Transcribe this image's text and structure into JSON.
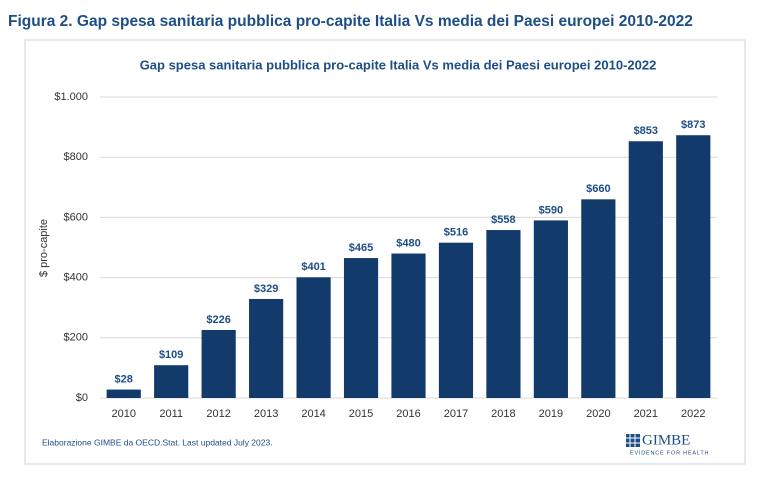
{
  "figure_title": "Figura 2. Gap spesa sanitaria pubblica pro-capite Italia Vs media dei Paesi europei 2010-2022",
  "chart_data": {
    "type": "bar",
    "title": "Gap spesa sanitaria pubblica pro-capite Italia Vs media dei Paesi europei 2010-2022",
    "y_label": "$ pro-capite",
    "categories": [
      "2010",
      "2011",
      "2012",
      "2013",
      "2014",
      "2015",
      "2016",
      "2017",
      "2018",
      "2019",
      "2020",
      "2021",
      "2022"
    ],
    "values": [
      28,
      109,
      226,
      329,
      401,
      465,
      480,
      516,
      558,
      590,
      660,
      853,
      873
    ],
    "value_labels": [
      "$28",
      "$109",
      "$226",
      "$329",
      "$401",
      "$465",
      "$480",
      "$516",
      "$558",
      "$590",
      "$660",
      "$853",
      "$873"
    ],
    "color": "#123a6b",
    "ylim": [
      0,
      1000
    ],
    "yticks": [
      {
        "value": 0,
        "label": "$0"
      },
      {
        "value": 200,
        "label": "$200"
      },
      {
        "value": 400,
        "label": "$400"
      },
      {
        "value": 600,
        "label": "$600"
      },
      {
        "value": 800,
        "label": "$800"
      },
      {
        "value": 1000,
        "label": "$1.000"
      }
    ],
    "grid": true,
    "source": "Elaborazione GIMBE da OECD.Stat. Last updated July 2023."
  },
  "logo": {
    "name": "GIMBE",
    "tagline": "EVIDENCE FOR HEALTH"
  }
}
